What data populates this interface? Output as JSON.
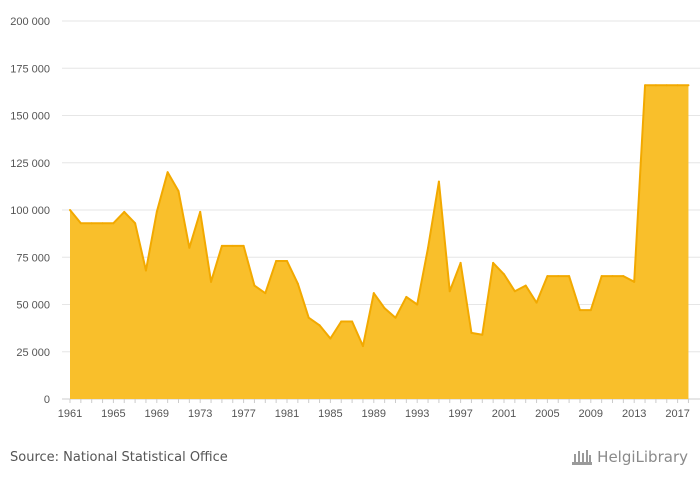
{
  "source_text": "Source: National Statistical Office",
  "logo_text": "HelgiLibrary",
  "chart_data": {
    "type": "area",
    "color": "#f9bf2b",
    "line_color": "#f2a900",
    "grid": true,
    "ylim": [
      0,
      200000
    ],
    "y_ticks": [
      0,
      25000,
      50000,
      75000,
      100000,
      125000,
      150000,
      175000,
      200000
    ],
    "y_tick_labels": [
      "0",
      "25 000",
      "50 000",
      "75 000",
      "100 000",
      "125 000",
      "150 000",
      "175 000",
      "200 000"
    ],
    "x_ticks": [
      1961,
      1965,
      1969,
      1973,
      1977,
      1981,
      1985,
      1989,
      1993,
      1997,
      2001,
      2005,
      2009,
      2013,
      2017
    ],
    "x": [
      1961,
      1962,
      1963,
      1964,
      1965,
      1966,
      1967,
      1968,
      1969,
      1970,
      1971,
      1972,
      1973,
      1974,
      1975,
      1976,
      1977,
      1978,
      1979,
      1980,
      1981,
      1982,
      1983,
      1984,
      1985,
      1986,
      1987,
      1988,
      1989,
      1990,
      1991,
      1992,
      1993,
      1994,
      1995,
      1996,
      1997,
      1998,
      1999,
      2000,
      2001,
      2002,
      2003,
      2004,
      2005,
      2006,
      2007,
      2008,
      2009,
      2010,
      2011,
      2012,
      2013,
      2014,
      2015,
      2016,
      2017,
      2018
    ],
    "values": [
      100000,
      93000,
      93000,
      93000,
      93000,
      99000,
      93000,
      68000,
      99000,
      120000,
      110000,
      80000,
      99000,
      62000,
      81000,
      81000,
      81000,
      60000,
      56000,
      73000,
      73000,
      61000,
      43000,
      39000,
      32000,
      41000,
      41000,
      28000,
      56000,
      48000,
      43000,
      54000,
      50000,
      80000,
      115000,
      57000,
      72000,
      35000,
      34000,
      72000,
      66000,
      57000,
      60000,
      51000,
      65000,
      65000,
      65000,
      47000,
      47000,
      65000,
      65000,
      65000,
      62000,
      166000,
      166000,
      166000,
      166000,
      166000
    ]
  }
}
